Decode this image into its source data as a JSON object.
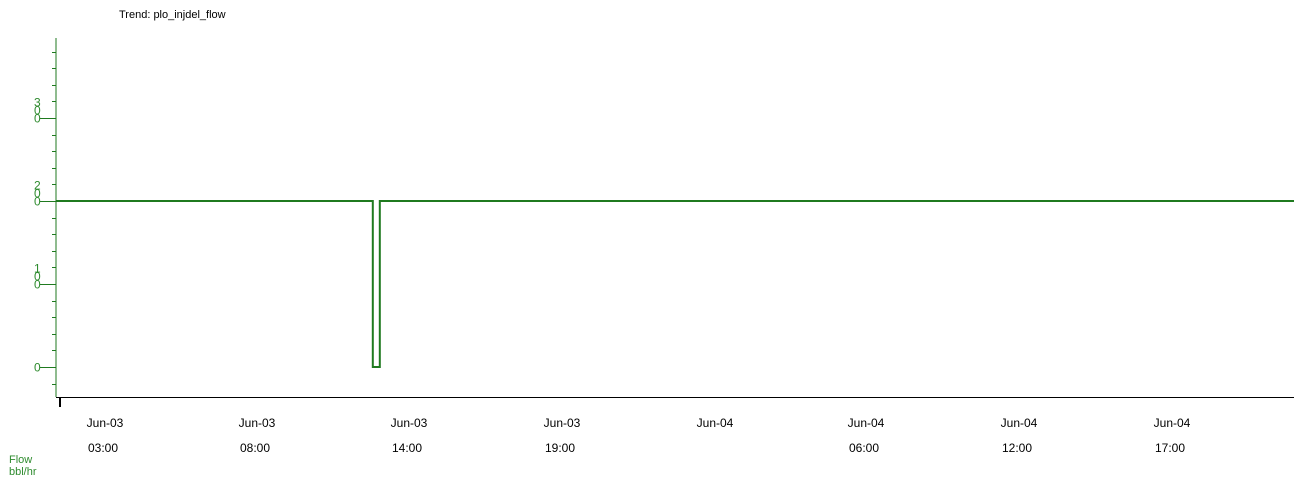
{
  "chart_data": {
    "type": "line",
    "title": "Trend: plo_injdel_flow",
    "ylabel_lines": [
      "Flow",
      "bbl/hr"
    ],
    "ylim": [
      -30,
      400
    ],
    "yticks": [
      {
        "value": 0,
        "label": [
          "0"
        ]
      },
      {
        "value": 100,
        "label": [
          "1",
          "0",
          "0"
        ]
      },
      {
        "value": 200,
        "label": [
          "2",
          "0",
          "0"
        ]
      },
      {
        "value": 300,
        "label": [
          "3",
          "0",
          "0"
        ]
      }
    ],
    "xticks": [
      {
        "date": "Jun-03",
        "time": "03:00"
      },
      {
        "date": "Jun-03",
        "time": "08:00"
      },
      {
        "date": "Jun-03",
        "time": "14:00"
      },
      {
        "date": "Jun-03",
        "time": "19:00"
      },
      {
        "date": "Jun-04",
        "time": ""
      },
      {
        "date": "Jun-04",
        "time": "06:00"
      },
      {
        "date": "Jun-04",
        "time": "12:00"
      },
      {
        "date": "Jun-04",
        "time": "17:00"
      }
    ],
    "series": [
      {
        "color": "#1f7a1f",
        "points": [
          {
            "t": "Jun-03 01:10",
            "v": 200
          },
          {
            "t": "Jun-03 12:30",
            "v": 200
          },
          {
            "t": "Jun-03 12:30",
            "v": 0
          },
          {
            "t": "Jun-03 12:45",
            "v": 0
          },
          {
            "t": "Jun-03 12:45",
            "v": 200
          },
          {
            "t": "Jun-04 22:30",
            "v": 200
          }
        ]
      }
    ],
    "axis_color": "#1f7a1f"
  }
}
